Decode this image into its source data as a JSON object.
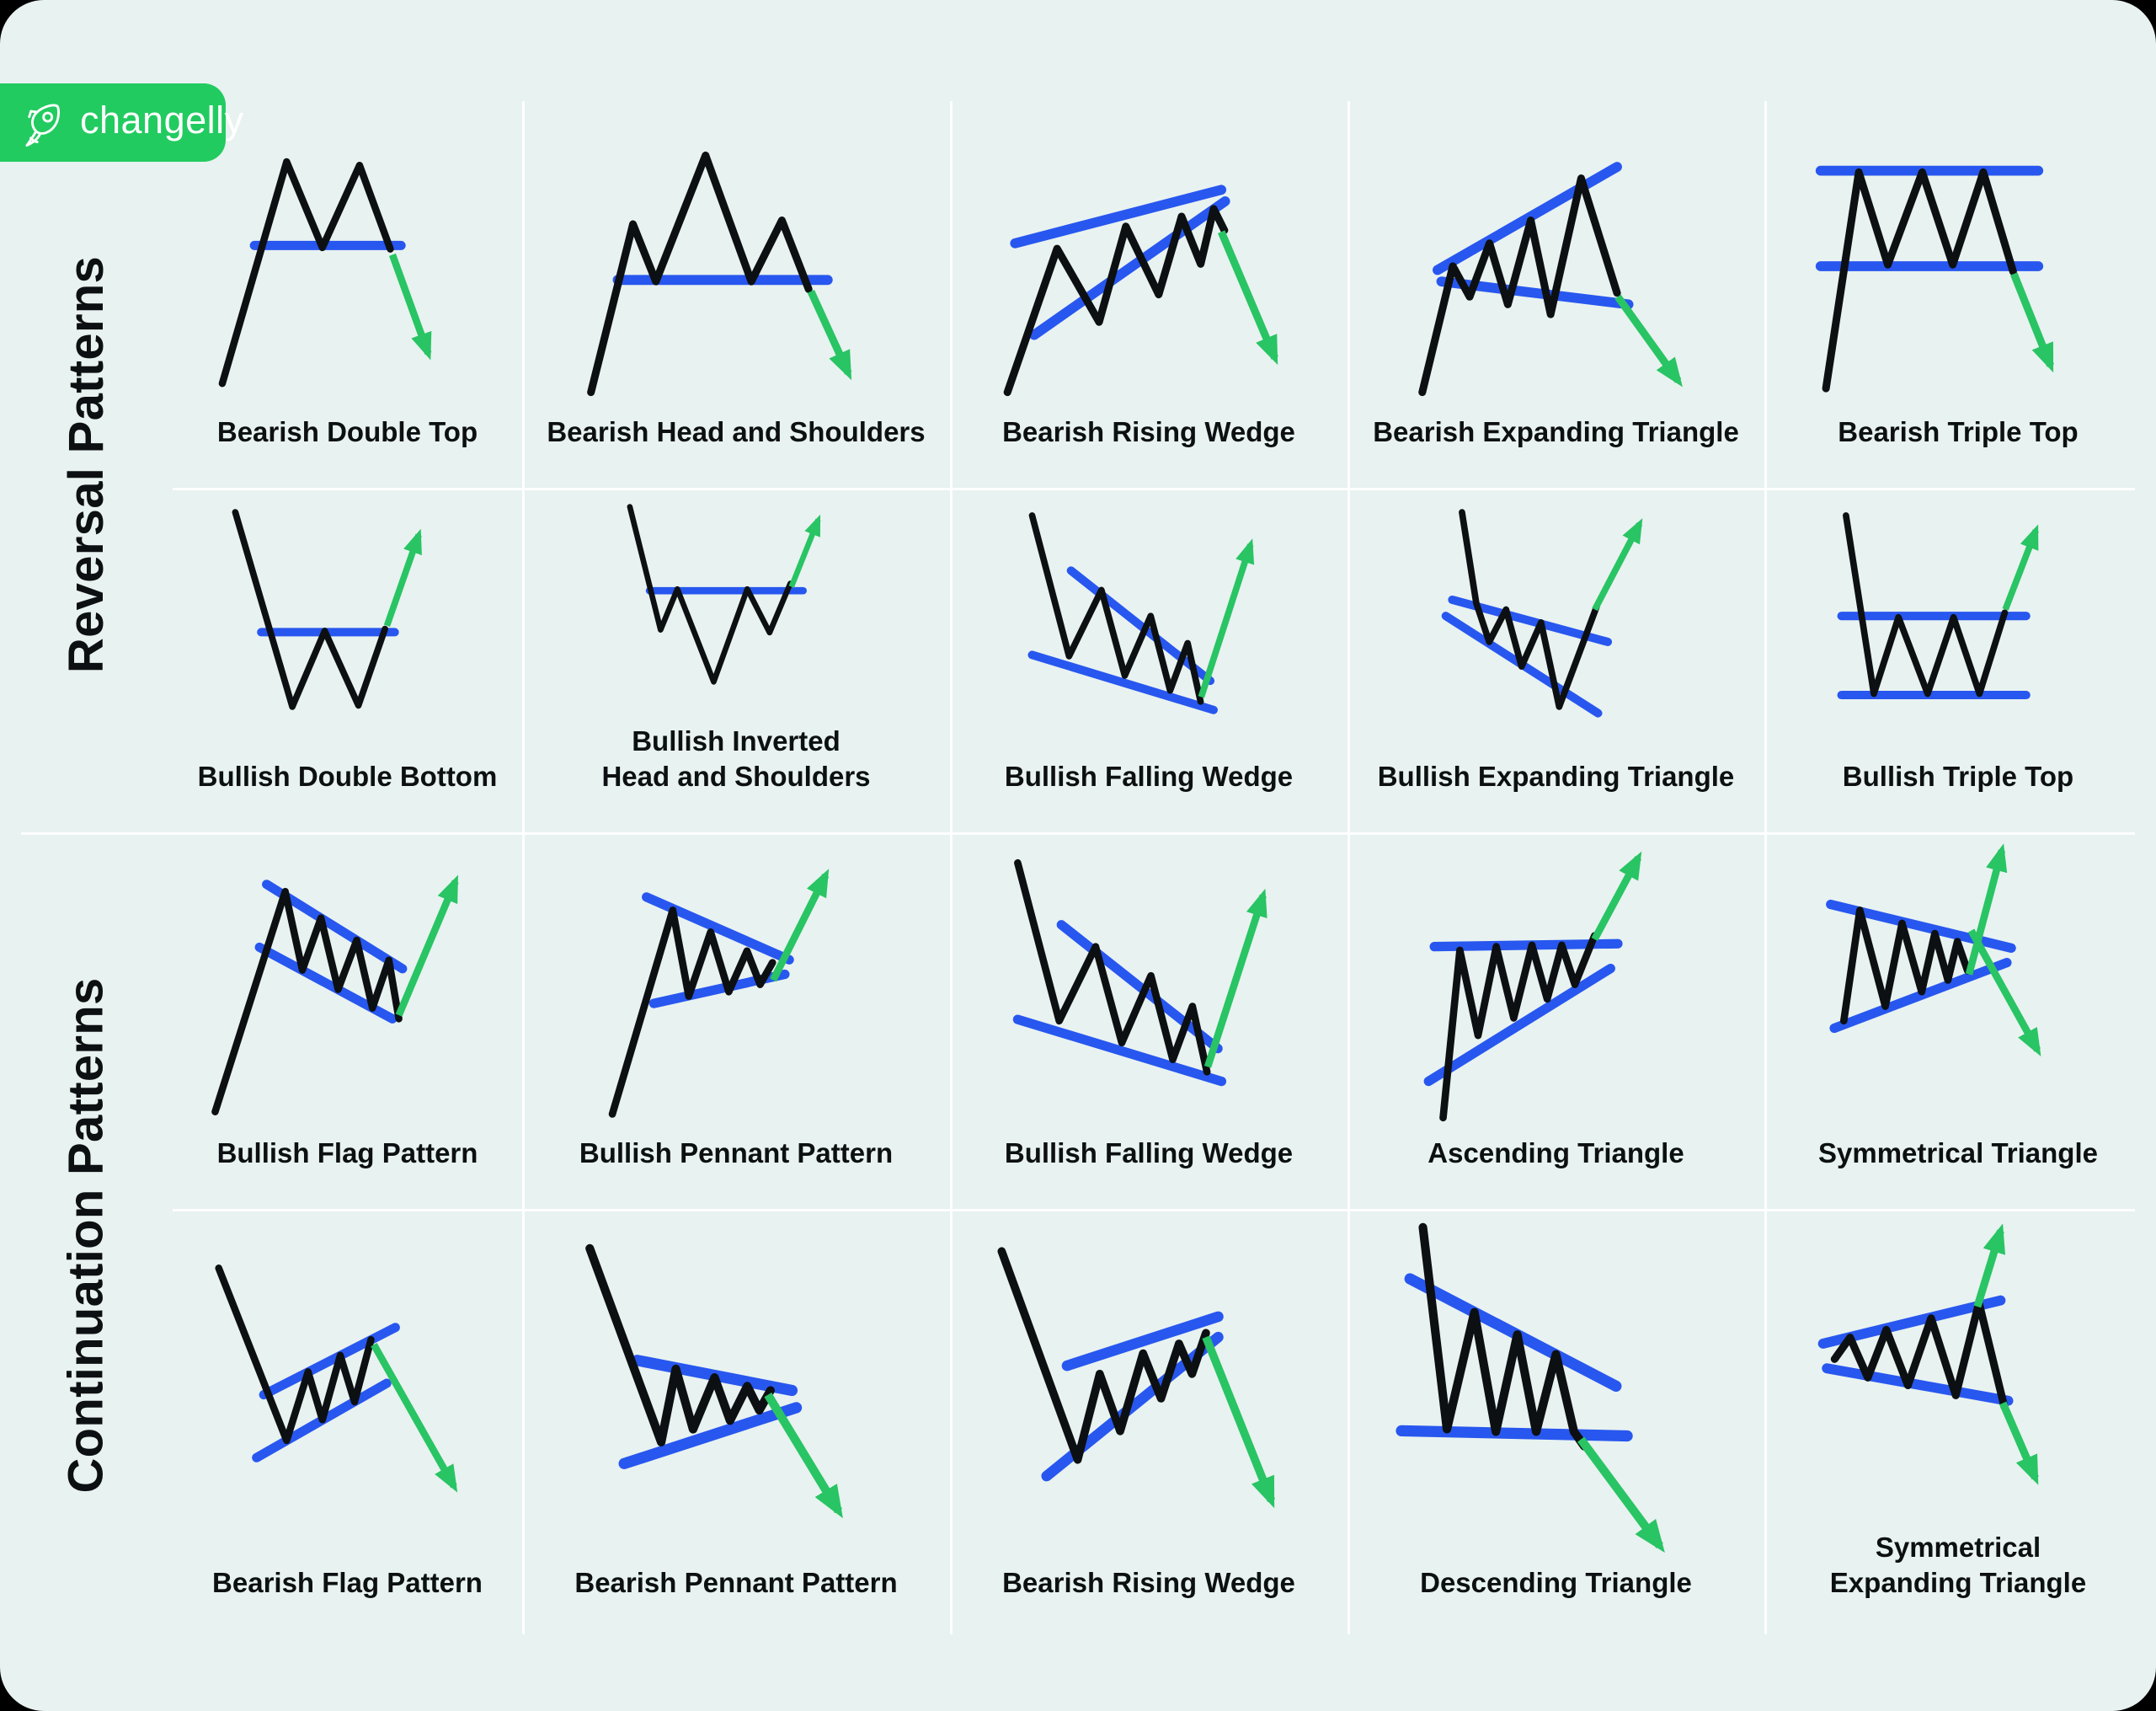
{
  "logo": {
    "text": "changelly",
    "icon": "rocket-icon",
    "badge_color": "#22cb60"
  },
  "colors": {
    "background": "#000000",
    "card": "#e8f2f0",
    "line_black": "#0d1012",
    "trend_blue": "#2857ef",
    "arrow_green": "#29c464",
    "divider": "#ffffff",
    "text": "#0d1012"
  },
  "sections": [
    {
      "title": "Reversal Patterns",
      "rows": [
        [
          {
            "id": "bearish-double-top",
            "label": "Bearish Double Top",
            "black": "60,380 150,70 200,190 252,75 295,192",
            "blue": [
              "105,187 310,187"
            ],
            "green": [
              "298,200 348,338"
            ]
          },
          {
            "id": "bearish-head-and-shoulders",
            "label": "Bearish Head and Shoulders",
            "black": "45,380 100,160 130,235 195,70 255,235 295,155 330,245",
            "blue": [
              "80,233 355,233"
            ],
            "green": [
              "333,248 382,355"
            ]
          },
          {
            "id": "bearish-rising-wedge",
            "label": "Bearish Rising Wedge",
            "black": "50,380 115,192 170,288 205,163 248,252 278,150 303,212 320,140 334,168",
            "blue": [
              "60,185 330,115",
              "85,305 335,130"
            ],
            "green": [
              "330,170 400,335"
            ]
          },
          {
            "id": "bearish-expanding-triangle",
            "label": "Bearish Expanding Triangle",
            "black": "60,380 100,215 122,255 148,185 172,265 202,155 228,278 268,100 315,250",
            "blue": [
              "80,220 315,85",
              "85,235 330,265"
            ],
            "green": [
              "316,255 395,365"
            ]
          },
          {
            "id": "bearish-triple-top",
            "label": "Bearish Triple Top",
            "black": "62,375 105,92 143,213 188,92 228,213 268,92 307,222",
            "blue": [
              "55,90 340,90",
              "55,215 340,215"
            ],
            "green": [
              "308,225 356,345"
            ]
          }
        ],
        [
          {
            "id": "bullish-double-bottom",
            "label": "Bullish Double Bottom",
            "black": "62,30 150,330 200,213 252,328 293,210",
            "blue": [
              "102,215 308,215"
            ],
            "green": [
              "296,205 345,65"
            ]
          },
          {
            "id": "bullish-inverted-head-and-shoulders",
            "label": "Bullish Inverted\nHead and Shoulders",
            "black": "45,25 100,245 130,172 195,338 255,172 295,250 332,162",
            "blue": [
              "80,175 355,175"
            ],
            "green": [
              "334,168 382,48"
            ]
          },
          {
            "id": "bullish-falling-wedge-reversal",
            "label": "Bullish Falling Wedge",
            "black": "55,35 112,252 162,150 198,282 238,190 268,305 295,232 315,322",
            "blue": [
              "115,120 330,290",
              "55,250 335,335"
            ],
            "green": [
              "316,315 392,80"
            ]
          },
          {
            "id": "bullish-expanding-triangle",
            "label": "Bullish Expanding Triangle",
            "black": "90,30 112,170 132,230 158,180 182,268 212,200 240,330 298,175",
            "blue": [
              "75,165 315,230",
              "65,190 300,340"
            ],
            "green": [
              "295,180 364,48"
            ]
          },
          {
            "id": "bullish-triple-top",
            "label": "Bullish Triple Top",
            "black": "62,35 105,310 143,192 188,310 228,192 268,310 307,185",
            "blue": [
              "55,190 340,190",
              "55,312 340,312"
            ],
            "green": [
              "308,180 355,58"
            ]
          }
        ]
      ]
    },
    {
      "title": "Continuation Patterns",
      "rows": [
        [
          {
            "id": "bullish-flag-pattern",
            "label": "Bullish Flag Pattern",
            "black": "50,380 148,72 172,182 198,109 222,209 248,140 270,235 293,168 307,250",
            "blue": [
              "122,62 312,180",
              "112,150 298,250"
            ],
            "green": [
              "307,245 386,58"
            ]
          },
          {
            "id": "bullish-pennant-pattern",
            "label": "Bullish Pennant Pattern",
            "black": "65,380 148,100 170,218 200,130 225,212 250,156 268,202 285,172",
            "blue": [
              "112,82 308,168",
              "122,228 302,188"
            ],
            "green": [
              "286,196 358,52"
            ]
          },
          {
            "id": "bullish-falling-wedge-continuation",
            "label": "Bullish Falling Wedge",
            "black": "55,35 112,252 162,150 198,282 238,190 268,305 295,232 315,322",
            "blue": [
              "115,120 330,290",
              "55,250 335,335"
            ],
            "green": [
              "316,315 392,80"
            ]
          },
          {
            "id": "ascending-triangle",
            "label": "Ascending Triangle",
            "black": "80,385 103,155 128,272 153,150 177,248 202,148 223,222 243,148 261,202 288,135",
            "blue": [
              "68,150 320,146",
              "60,335 310,180"
            ],
            "green": [
              "288,140 348,28"
            ]
          },
          {
            "id": "symmetrical-triangle",
            "label": "Symmetrical Triangle",
            "black": "78,252 100,100 135,232 158,118 185,212 203,132 221,196 234,143 248,183",
            "blue": [
              "60,92 308,152",
              "65,262 302,172"
            ],
            "green": [
              "250,188 295,18",
              "253,128 344,292"
            ]
          }
        ],
        [
          {
            "id": "bearish-flag-pattern",
            "label": "Bearish Flag Pattern",
            "black": "55,35 150,276 180,180 200,247 225,157 245,222 268,135",
            "blue": [
              "118,212 302,118",
              "108,300 290,196"
            ],
            "green": [
              "272,142 384,340"
            ]
          },
          {
            "id": "bearish-pennant-pattern",
            "label": "Bearish Pennant Pattern",
            "black": "65,40 148,265 165,180 185,250 210,190 228,240 248,200 262,228 275,205",
            "blue": [
              "120,170 300,205",
              "105,290 305,225"
            ],
            "green": [
              "272,210 354,345"
            ]
          },
          {
            "id": "bearish-rising-wedge-continuation",
            "label": "Bearish Rising Wedge",
            "black": "55,35 148,290 175,185 200,255 228,160 250,215 272,148 288,185 305,135",
            "blue": [
              "135,175 320,115",
              "110,310 320,140"
            ],
            "green": [
              "305,140 385,340"
            ]
          },
          {
            "id": "descending-triangle",
            "label": "Descending Triangle",
            "black": "80,15 108,250 140,114 165,253 190,140 212,253 235,163 256,253 268,270",
            "blue": [
              "65,75 305,200",
              "55,252 318,258"
            ],
            "green": [
              "264,262 356,386"
            ]
          },
          {
            "id": "symmetrical-expanding-triangle",
            "label": "Symmetrical\nExpanding Triangle",
            "black": "75,188 95,160 118,212 142,150 170,222 200,135 232,235 262,115 295,250",
            "blue": [
              "60,168 290,112",
              "65,200 300,242"
            ],
            "green": [
              "260,120 290,22",
              "293,245 335,342"
            ]
          }
        ]
      ]
    }
  ]
}
